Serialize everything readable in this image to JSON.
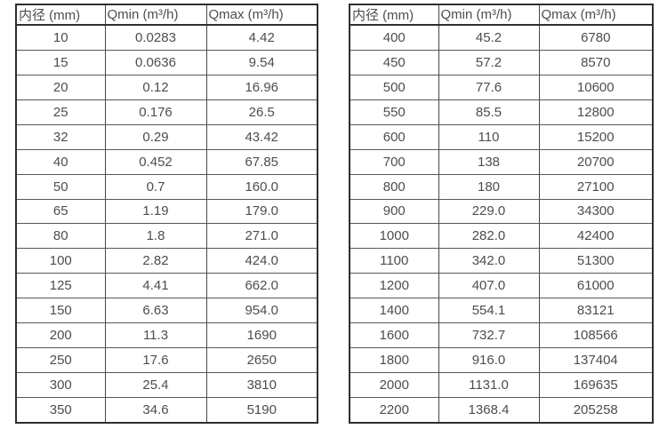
{
  "page": {
    "background_color": "#ffffff",
    "text_color": "#4d4d4d",
    "outer_border_color": "#2e2e2e",
    "inner_border_color": "#575757"
  },
  "tables": [
    {
      "name": "small-diameter-flow-table",
      "headers": [
        "内径 (mm)",
        "Qmin (m³/h)",
        "Qmax (m³/h)"
      ],
      "rows": [
        [
          "10",
          "0.0283",
          "4.42"
        ],
        [
          "15",
          "0.0636",
          "9.54"
        ],
        [
          "20",
          "0.12",
          "16.96"
        ],
        [
          "25",
          "0.176",
          "26.5"
        ],
        [
          "32",
          "0.29",
          "43.42"
        ],
        [
          "40",
          "0.452",
          "67.85"
        ],
        [
          "50",
          "0.7",
          "160.0"
        ],
        [
          "65",
          "1.19",
          "179.0"
        ],
        [
          "80",
          "1.8",
          "271.0"
        ],
        [
          "100",
          "2.82",
          "424.0"
        ],
        [
          "125",
          "4.41",
          "662.0"
        ],
        [
          "150",
          "6.63",
          "954.0"
        ],
        [
          "200",
          "11.3",
          "1690"
        ],
        [
          "250",
          "17.6",
          "2650"
        ],
        [
          "300",
          "25.4",
          "3810"
        ],
        [
          "350",
          "34.6",
          "5190"
        ]
      ]
    },
    {
      "name": "large-diameter-flow-table",
      "headers": [
        "内径 (mm)",
        "Qmin (m³/h)",
        "Qmax (m³/h)"
      ],
      "rows": [
        [
          "400",
          "45.2",
          "6780"
        ],
        [
          "450",
          "57.2",
          "8570"
        ],
        [
          "500",
          "77.6",
          "10600"
        ],
        [
          "550",
          "85.5",
          "12800"
        ],
        [
          "600",
          "110",
          "15200"
        ],
        [
          "700",
          "138",
          "20700"
        ],
        [
          "800",
          "180",
          "27100"
        ],
        [
          "900",
          "229.0",
          "34300"
        ],
        [
          "1000",
          "282.0",
          "42400"
        ],
        [
          "1100",
          "342.0",
          "51300"
        ],
        [
          "1200",
          "407.0",
          "61000"
        ],
        [
          "1400",
          "554.1",
          "83121"
        ],
        [
          "1600",
          "732.7",
          "108566"
        ],
        [
          "1800",
          "916.0",
          "137404"
        ],
        [
          "2000",
          "1131.0",
          "169635"
        ],
        [
          "2200",
          "1368.4",
          "205258"
        ]
      ]
    }
  ]
}
